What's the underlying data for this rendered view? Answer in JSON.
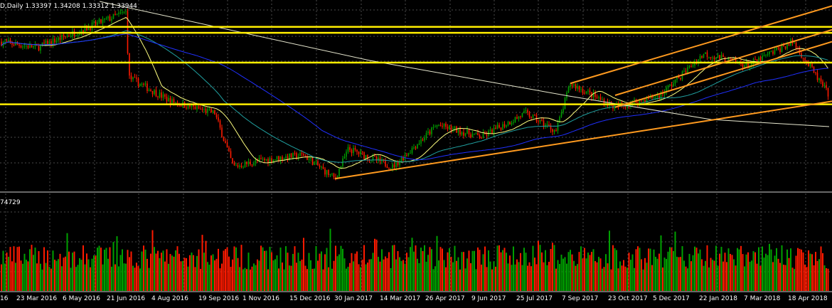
{
  "header": {
    "symbol_label": "D,Daily",
    "ohlc": "1.33397 1.34208 1.33312 1.33944"
  },
  "volume_header": {
    "value": "74729"
  },
  "colors": {
    "background": "#000000",
    "grid": "#4a4a4a",
    "bull": "#00a000",
    "bear": "#ff1a00",
    "horizontal_levels": "#ffee00",
    "channel_lines": "#ff9a1f",
    "ma_fast": "#ffff80",
    "ma_mid": "#20a0a0",
    "ma_slow": "#2030ff",
    "ma_long": "#e8e8d0"
  },
  "chart_data": [
    {
      "type": "candlestick",
      "title": "",
      "x_tick_labels": [
        "16",
        "23 Mar 2016",
        "6 May 2016",
        "21 Jun 2016",
        "4 Aug 2016",
        "19 Sep 2016",
        "1 Nov 2016",
        "15 Dec 2016",
        "30 Jan 2017",
        "14 Mar 2017",
        "26 Apr 2017",
        "9 Jun 2017",
        "25 Jul 2017",
        "7 Sep 2017",
        "23 Oct 2017",
        "5 Dec 2017",
        "22 Jan 2018",
        "7 Mar 2018",
        "18 Apr 2018"
      ],
      "last_close": 1.33944,
      "approx_close_path": [
        [
          "Feb 2016",
          1.43
        ],
        [
          "23 Mar 2016",
          1.42
        ],
        [
          "6 May 2016",
          1.45
        ],
        [
          "21 Jun 2016",
          1.48
        ],
        [
          "24 Jun 2016",
          1.37
        ],
        [
          "4 Aug 2016",
          1.33
        ],
        [
          "19 Sep 2016",
          1.31
        ],
        [
          "7 Oct 2016",
          1.22
        ],
        [
          "1 Nov 2016",
          1.23
        ],
        [
          "15 Dec 2016",
          1.24
        ],
        [
          "16 Jan 2017",
          1.2
        ],
        [
          "30 Jan 2017",
          1.25
        ],
        [
          "14 Mar 2017",
          1.22
        ],
        [
          "26 Apr 2017",
          1.29
        ],
        [
          "9 Jun 2017",
          1.27
        ],
        [
          "25 Jul 2017",
          1.31
        ],
        [
          "24 Aug 2017",
          1.28
        ],
        [
          "7 Sep 2017",
          1.36
        ],
        [
          "23 Oct 2017",
          1.32
        ],
        [
          "5 Dec 2017",
          1.34
        ],
        [
          "22 Jan 2018",
          1.41
        ],
        [
          "7 Mar 2018",
          1.39
        ],
        [
          "18 Apr 2018",
          1.43
        ],
        [
          "May 2018",
          1.34
        ]
      ],
      "horizontal_levels": [
        1.455,
        1.445,
        1.395,
        1.325
      ],
      "trend_lines": [
        {
          "from": [
            "16 Jan 2017",
            1.2
          ],
          "to": [
            "May 2018",
            1.33
          ]
        },
        {
          "from": [
            "7 Sep 2017",
            1.36
          ],
          "to": [
            "May 2018",
            1.49
          ]
        },
        {
          "from": [
            "23 Oct 2017",
            1.34
          ],
          "to": [
            "May 2018",
            1.45
          ]
        },
        {
          "from": [
            "23 Oct 2017",
            1.32
          ],
          "to": [
            "May 2018",
            1.43
          ]
        }
      ],
      "moving_averages": [
        "fast",
        "mid",
        "slow",
        "long"
      ],
      "grid": true
    },
    {
      "type": "bar",
      "title": "",
      "last_value": 74729,
      "grid": true
    }
  ]
}
